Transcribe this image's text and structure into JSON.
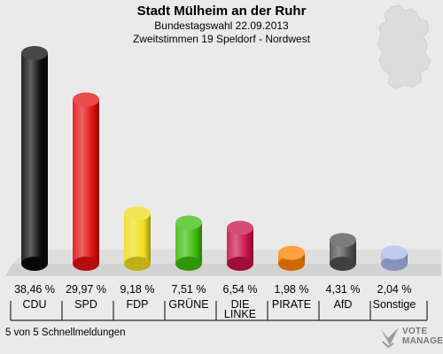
{
  "header": {
    "title": "Stadt Mülheim an der Ruhr",
    "subtitle": "Bundestagswahl 22.09.2013",
    "subtitle2": "Zweitstimmen 19 Speldorf - Nordwest"
  },
  "footer": {
    "note": "5 von 5 Schnellmeldungen"
  },
  "logo": {
    "line1": "VOTE",
    "line2": "MANAGER"
  },
  "chart_data": {
    "type": "bar",
    "title": "Stadt Mülheim an der Ruhr",
    "categories": [
      "CDU",
      "SPD",
      "FDP",
      "GRÜNE",
      "DIE LINKE",
      "PIRATE",
      "AfD",
      "Sonstige"
    ],
    "values": [
      38.46,
      29.97,
      9.18,
      7.51,
      6.54,
      1.98,
      4.31,
      2.04
    ],
    "value_labels": [
      "38,46 %",
      "29,97 %",
      "9,18 %",
      "7,51 %",
      "6,54 %",
      "1,98 %",
      "4,31 %",
      "2,04 %"
    ],
    "colors": [
      "#0a0a0a",
      "#e01010",
      "#eedc1c",
      "#3cbc0c",
      "#c8104a",
      "#ff8200",
      "#505050",
      "#a8b8e8"
    ],
    "ylim": [
      0,
      40
    ],
    "grid": false
  }
}
